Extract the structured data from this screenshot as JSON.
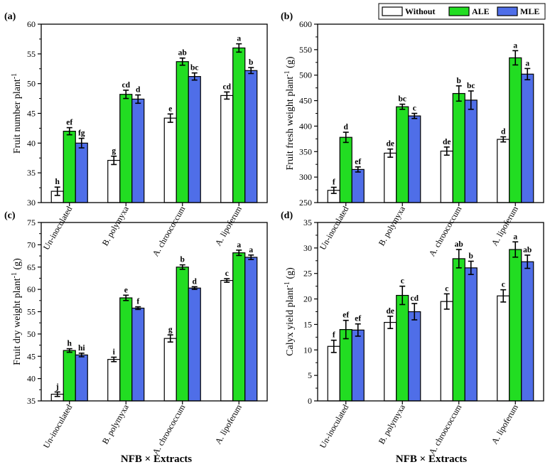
{
  "figure": {
    "x_title": "NFB × Extracts",
    "colors": {
      "Without": "#ffffff",
      "ALE": "#22dd22",
      "MLE": "#4f6ee8"
    }
  },
  "legend": {
    "entries": [
      "Without",
      "ALE",
      "MLE"
    ]
  },
  "chart_data": [
    {
      "type": "bar",
      "panel": "(a)",
      "title": "",
      "ylabel": "Fruit number plant",
      "ylabel_sup": "-1",
      "ylim": [
        30,
        60
      ],
      "yticks": [
        30,
        35,
        40,
        45,
        50,
        55,
        60
      ],
      "categories": [
        "Un-inoculated",
        "B. polymyxa",
        "A. chroococcum",
        "A. lipoferum"
      ],
      "series": [
        {
          "name": "Without",
          "values": [
            31.9,
            37.1,
            44.2,
            48.0
          ],
          "errors": [
            0.7,
            0.7,
            0.7,
            0.6
          ],
          "letters": [
            "h",
            "g",
            "e",
            "cd"
          ]
        },
        {
          "name": "ALE",
          "values": [
            42.0,
            48.2,
            53.7,
            56.0
          ],
          "errors": [
            0.6,
            0.7,
            0.6,
            0.7
          ],
          "letters": [
            "ef",
            "cd",
            "ab",
            "a"
          ]
        },
        {
          "name": "MLE",
          "values": [
            40.0,
            47.4,
            51.2,
            52.2
          ],
          "errors": [
            0.8,
            0.7,
            0.6,
            0.5
          ],
          "letters": [
            "fg",
            "d",
            "bc",
            "b"
          ]
        }
      ]
    },
    {
      "type": "bar",
      "panel": "(b)",
      "title": "",
      "ylabel": "Fruit fresh weight plant",
      "ylabel_sup": "-1",
      "ylabel_suffix": " (g)",
      "ylim": [
        250,
        600
      ],
      "yticks": [
        250,
        300,
        350,
        400,
        450,
        500,
        550,
        600
      ],
      "categories": [
        "Un-inoculated",
        "B. polymyxa",
        "A. chroococcum",
        "A. lipoferum"
      ],
      "series": [
        {
          "name": "Without",
          "values": [
            274,
            347,
            351,
            374
          ],
          "errors": [
            6,
            8,
            8,
            5
          ],
          "letters": [
            "f",
            "de",
            "de",
            "d"
          ]
        },
        {
          "name": "ALE",
          "values": [
            378,
            438,
            464,
            534
          ],
          "errors": [
            10,
            5,
            15,
            14
          ],
          "letters": [
            "d",
            "bc",
            "b",
            "a"
          ]
        },
        {
          "name": "MLE",
          "values": [
            315,
            420,
            451,
            502
          ],
          "errors": [
            5,
            5,
            18,
            11
          ],
          "letters": [
            "ef",
            "c",
            "bc",
            "a"
          ]
        }
      ]
    },
    {
      "type": "bar",
      "panel": "(c)",
      "title": "",
      "ylabel": "Fruit dry weight plant",
      "ylabel_sup": "-1",
      "ylabel_suffix": " (g)",
      "ylim": [
        35,
        75
      ],
      "yticks": [
        35,
        40,
        45,
        50,
        55,
        60,
        65,
        70,
        75
      ],
      "categories": [
        "Un-inoculated",
        "B. polymyxa",
        "A. chroococcum",
        "A. lipoferum"
      ],
      "series": [
        {
          "name": "Without",
          "values": [
            36.5,
            44.3,
            49.0,
            62.0
          ],
          "errors": [
            0.5,
            0.5,
            0.8,
            0.4
          ],
          "letters": [
            "j",
            "i",
            "g",
            "c"
          ]
        },
        {
          "name": "ALE",
          "values": [
            46.3,
            58.1,
            65.0,
            68.2
          ],
          "errors": [
            0.4,
            0.6,
            0.5,
            0.6
          ],
          "letters": [
            "h",
            "e",
            "b",
            "a"
          ]
        },
        {
          "name": "MLE",
          "values": [
            45.3,
            55.8,
            60.3,
            67.2
          ],
          "errors": [
            0.4,
            0.3,
            0.3,
            0.5
          ],
          "letters": [
            "hi",
            "f",
            "d",
            "a"
          ]
        }
      ]
    },
    {
      "type": "bar",
      "panel": "(d)",
      "title": "",
      "ylabel": "Calyx yield plant",
      "ylabel_sup": "-1",
      "ylabel_suffix": " (g)",
      "ylim": [
        0,
        35
      ],
      "yticks": [
        0,
        5,
        10,
        15,
        20,
        25,
        30,
        35
      ],
      "categories": [
        "Un-inoculated",
        "B. polymyxa",
        "A. chroococcum",
        "A. lipoferum"
      ],
      "series": [
        {
          "name": "Without",
          "values": [
            10.7,
            15.4,
            19.5,
            20.6
          ],
          "errors": [
            1.2,
            1.2,
            1.5,
            1.2
          ],
          "letters": [
            "f",
            "de",
            "c",
            "c"
          ]
        },
        {
          "name": "ALE",
          "values": [
            14.0,
            20.7,
            27.9,
            29.7
          ],
          "errors": [
            1.8,
            1.8,
            1.8,
            1.5
          ],
          "letters": [
            "ef",
            "c",
            "ab",
            "a"
          ]
        },
        {
          "name": "MLE",
          "values": [
            13.9,
            17.5,
            26.1,
            27.3
          ],
          "errors": [
            1.2,
            1.6,
            1.3,
            1.3
          ],
          "letters": [
            "ef",
            "cd",
            "b",
            "ab"
          ]
        }
      ]
    }
  ]
}
